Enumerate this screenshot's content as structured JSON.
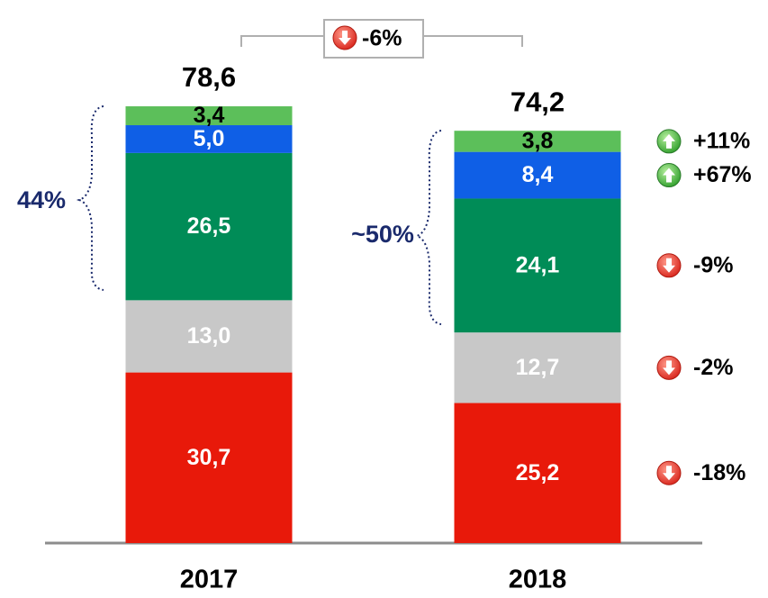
{
  "chart_data": {
    "type": "bar",
    "stacked": true,
    "categories": [
      "2017",
      "2018"
    ],
    "series": [
      {
        "color": "#e8190a",
        "values": [
          30.7,
          25.2
        ],
        "value_labels": [
          "30,7",
          "25,2"
        ],
        "label_color": "#ffffff"
      },
      {
        "color": "#c8c8c8",
        "values": [
          13.0,
          12.7
        ],
        "value_labels": [
          "13,0",
          "12,7"
        ],
        "label_color": "#ffffff"
      },
      {
        "color": "#008c57",
        "values": [
          26.5,
          24.1
        ],
        "value_labels": [
          "26,5",
          "24,1"
        ],
        "label_color": "#ffffff"
      },
      {
        "color": "#0f5fe6",
        "values": [
          5.0,
          8.4
        ],
        "value_labels": [
          "5,0",
          "8,4"
        ],
        "label_color": "#ffffff"
      },
      {
        "color": "#5cbf5a",
        "values": [
          3.4,
          3.8
        ],
        "value_labels": [
          "3,4",
          "3,8"
        ],
        "label_color": "#000000"
      }
    ],
    "totals": [
      78.6,
      74.2
    ],
    "total_labels": [
      "78,6",
      "74,2"
    ],
    "changes": [
      {
        "label": "-18%",
        "direction": "down"
      },
      {
        "label": "-2%",
        "direction": "down"
      },
      {
        "label": "-9%",
        "direction": "down"
      },
      {
        "label": "+67%",
        "direction": "up"
      },
      {
        "label": "+11%",
        "direction": "up"
      }
    ],
    "total_change": {
      "label": "-6%",
      "direction": "down"
    },
    "brace_labels": [
      "44%",
      "~50%"
    ],
    "ylim": [
      0,
      80
    ]
  }
}
